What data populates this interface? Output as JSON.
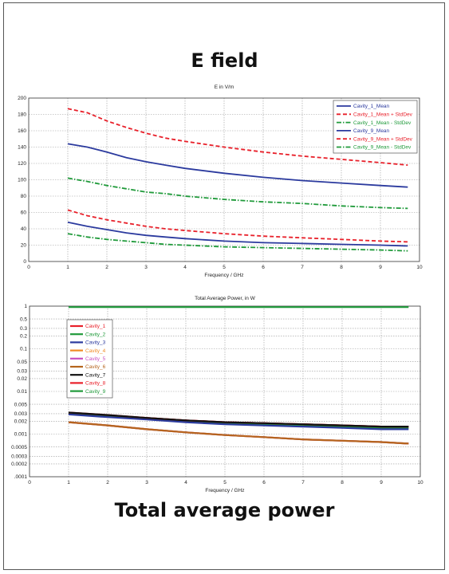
{
  "page": {
    "title_top": "E field",
    "title_bottom": "Total average power"
  },
  "chart_data": [
    {
      "type": "line",
      "title": "E in V/m",
      "xlabel": "Frequency / GHz",
      "ylabel": "",
      "xlim": [
        0,
        10
      ],
      "ylim": [
        0,
        200
      ],
      "xticks": [
        0,
        1,
        2,
        3,
        4,
        5,
        6,
        7,
        8,
        9,
        10
      ],
      "yticks": [
        0,
        20,
        40,
        60,
        80,
        100,
        120,
        140,
        160,
        180,
        200
      ],
      "grid": true,
      "legend_position": "top-right",
      "x": [
        1,
        1.5,
        2,
        2.5,
        3,
        3.5,
        4,
        5,
        6,
        7,
        8,
        9,
        9.7
      ],
      "series": [
        {
          "name": "Cavity_1_Mean",
          "color": "#2b3a9e",
          "dash": "solid",
          "values": [
            144,
            140,
            134,
            127,
            122,
            118,
            114,
            108,
            103,
            99,
            96,
            93,
            91
          ]
        },
        {
          "name": "Cavity_1_Mean + StdDev",
          "color": "#e8202a",
          "dash": "dash",
          "values": [
            187,
            182,
            172,
            164,
            157,
            151,
            147,
            140,
            134,
            129,
            125,
            121,
            118
          ]
        },
        {
          "name": "Cavity_1_Mean - StdDev",
          "color": "#1f9a3a",
          "dash": "dashdot",
          "values": [
            102,
            98,
            93,
            89,
            85,
            83,
            80,
            76,
            73,
            71,
            68,
            66,
            65
          ]
        },
        {
          "name": "Cavity_9_Mean",
          "color": "#2b3a9e",
          "dash": "solid",
          "values": [
            48,
            43,
            39,
            35,
            32,
            30,
            28,
            25,
            23,
            22,
            21,
            20,
            19
          ]
        },
        {
          "name": "Cavity_9_Mean + StdDev",
          "color": "#e8202a",
          "dash": "dash",
          "values": [
            63,
            56,
            51,
            47,
            43,
            40,
            38,
            34,
            31,
            29,
            27,
            25,
            24
          ]
        },
        {
          "name": "Cavity_9_Mean - StdDev",
          "color": "#1f9a3a",
          "dash": "dashdot",
          "values": [
            34,
            30,
            27,
            25,
            23,
            21,
            20,
            18,
            17,
            16,
            15,
            14,
            13
          ]
        }
      ]
    },
    {
      "type": "line",
      "title": "Total Average Power, in W",
      "xlabel": "Frequency / GHz",
      "ylabel": "",
      "yscale": "log",
      "xlim": [
        0,
        10
      ],
      "ylim": [
        0.0001,
        1
      ],
      "xticks": [
        0,
        1,
        2,
        3,
        4,
        5,
        6,
        7,
        8,
        9,
        10
      ],
      "ytick_labels": [
        "1",
        "0.5",
        "0.3",
        "0.2",
        "0.1",
        "0.05",
        "0.03",
        "0.02",
        "0.01",
        "0.005",
        "0.003",
        "0.002",
        "0.001",
        "0.0005",
        "0.0003",
        "0.0002",
        ".0001"
      ],
      "yticks": [
        1,
        0.5,
        0.3,
        0.2,
        0.1,
        0.05,
        0.03,
        0.02,
        0.01,
        0.005,
        0.003,
        0.002,
        0.001,
        0.0005,
        0.0003,
        0.0002,
        0.0001
      ],
      "grid": true,
      "legend_position": "top-left",
      "x": [
        1,
        2,
        3,
        4,
        5,
        6,
        7,
        8,
        9,
        9.7
      ],
      "series": [
        {
          "name": "Cavity_1",
          "color": "#e8202a",
          "values": [
            0.0031,
            0.0027,
            0.0024,
            0.0021,
            0.0019,
            0.0018,
            0.0017,
            0.0016,
            0.0015,
            0.0015
          ]
        },
        {
          "name": "Cavity_2",
          "color": "#1f9a3a",
          "values": [
            0.003,
            0.0026,
            0.0023,
            0.002,
            0.0018,
            0.0017,
            0.0016,
            0.0015,
            0.0014,
            0.0014
          ]
        },
        {
          "name": "Cavity_3",
          "color": "#2b3a9e",
          "values": [
            0.0029,
            0.0025,
            0.0022,
            0.0019,
            0.0017,
            0.0016,
            0.0015,
            0.0014,
            0.0013,
            0.0013
          ]
        },
        {
          "name": "Cavity_4",
          "color": "#f08a24",
          "values": [
            0.0019,
            0.0016,
            0.0013,
            0.0011,
            0.00095,
            0.00085,
            0.00075,
            0.0007,
            0.00065,
            0.0006
          ]
        },
        {
          "name": "Cavity_5",
          "color": "#c84fc0",
          "values": [
            0.0019,
            0.0016,
            0.0013,
            0.0011,
            0.00095,
            0.00085,
            0.00075,
            0.0007,
            0.00065,
            0.0006
          ]
        },
        {
          "name": "Cavity_6",
          "color": "#b5651d",
          "values": [
            0.0019,
            0.0016,
            0.0013,
            0.0011,
            0.00095,
            0.00085,
            0.00075,
            0.0007,
            0.00065,
            0.0006
          ]
        },
        {
          "name": "Cavity_7",
          "color": "#111111",
          "values": [
            0.0032,
            0.0028,
            0.0024,
            0.0021,
            0.0019,
            0.0018,
            0.0017,
            0.0016,
            0.0015,
            0.0015
          ]
        },
        {
          "name": "Cavity_8",
          "color": "#e8202a",
          "values": [
            0.0032,
            0.0028,
            0.0024,
            0.0021,
            0.0019,
            0.0018,
            0.0017,
            0.0016,
            0.0015,
            0.0015
          ]
        },
        {
          "name": "Cavity_9",
          "color": "#1f9a3a",
          "values": [
            0.95,
            0.95,
            0.95,
            0.95,
            0.95,
            0.95,
            0.95,
            0.95,
            0.95,
            0.95
          ]
        }
      ]
    }
  ]
}
